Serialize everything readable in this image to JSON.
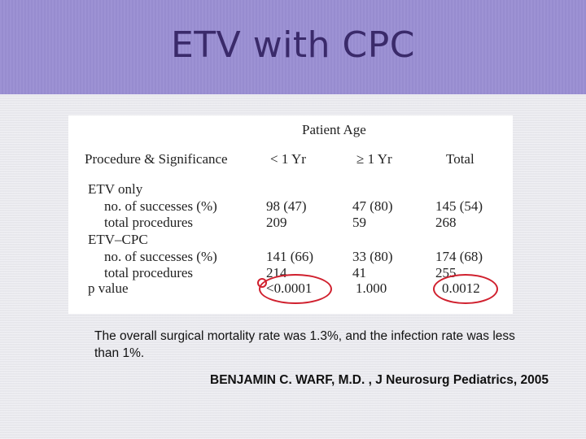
{
  "slide": {
    "title": "ETV  with CPC"
  },
  "table": {
    "group_header": "Patient Age",
    "headers": {
      "col0": "Procedure & Significance",
      "col1": "< 1 Yr",
      "col2": "≥ 1 Yr",
      "col3": "Total"
    },
    "rows": [
      {
        "label": "ETV only",
        "c1": "",
        "c2": "",
        "c3": ""
      },
      {
        "label": "no. of successes (%)",
        "c1": "98 (47)",
        "c2": "47 (80)",
        "c3": "145 (54)"
      },
      {
        "label": "total procedures",
        "c1": "209",
        "c2": "59",
        "c3": "268"
      },
      {
        "label": "ETV–CPC",
        "c1": "",
        "c2": "",
        "c3": ""
      },
      {
        "label": "no. of successes (%)",
        "c1": "141 (66)",
        "c2": "33 (80)",
        "c3": "174 (68)"
      },
      {
        "label": "total procedures",
        "c1": "214",
        "c2": "41",
        "c3": "255"
      },
      {
        "label": "p value",
        "c1": "<0.0001",
        "c2": "1.000",
        "c3": "0.0012"
      }
    ]
  },
  "note": "The overall surgical mortality rate was 1.3%, and the infection rate was less than 1%.",
  "citation": "BENJAMIN C. WARF, M.D. , J Neurosurg Pediatrics, 2005",
  "colors": {
    "header_band": "#9a8fd3",
    "title_text": "#3a2a6a",
    "highlight_circle": "#d0202e"
  }
}
